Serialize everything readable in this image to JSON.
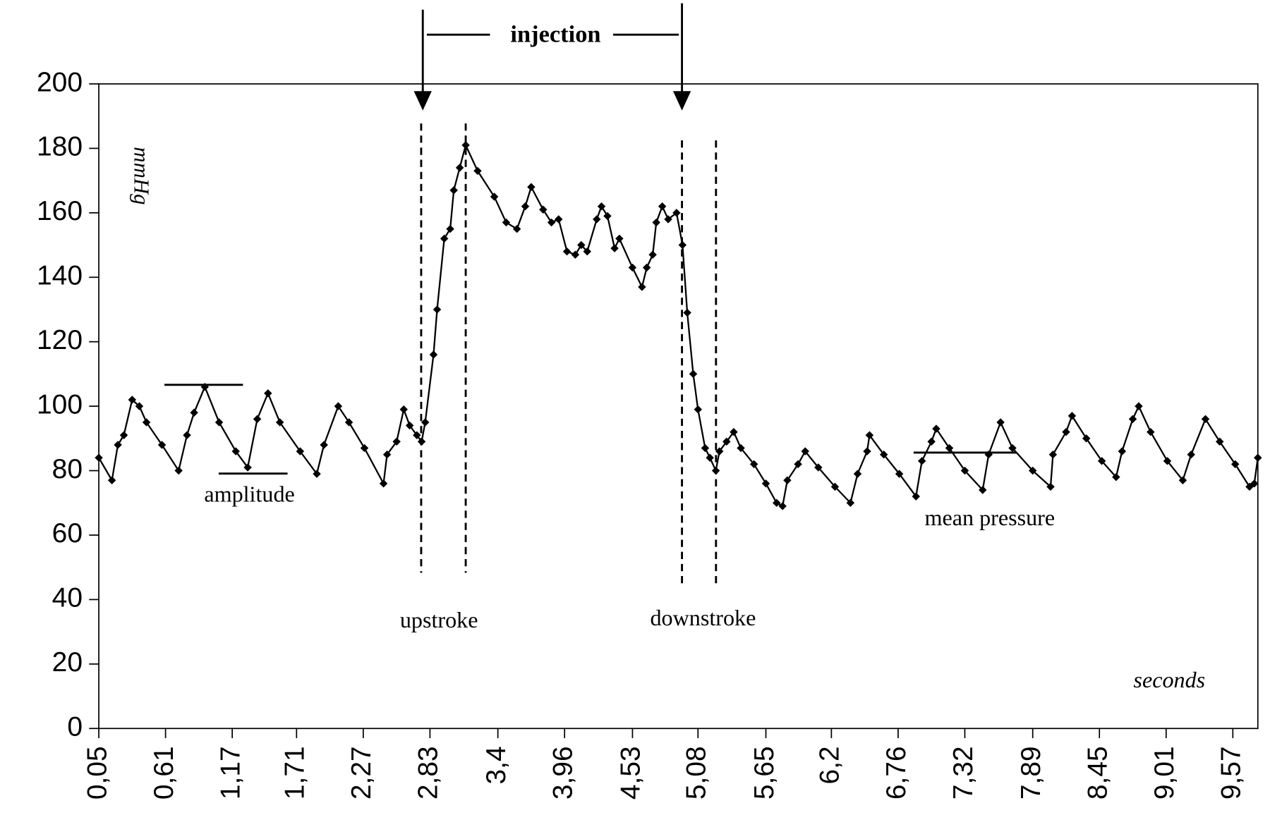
{
  "chart_data": {
    "type": "line",
    "x_label": "seconds",
    "y_label": "mmHg",
    "annotations": [
      "injection",
      "upstroke",
      "downstroke",
      "amplitude",
      "mean pressure"
    ],
    "color": "#000000",
    "x": [
      0.05,
      0.16,
      0.21,
      0.26,
      0.33,
      0.39,
      0.45,
      0.58,
      0.72,
      0.79,
      0.85,
      0.94,
      1.06,
      1.2,
      1.3,
      1.38,
      1.47,
      1.57,
      1.74,
      1.88,
      1.94,
      2.06,
      2.15,
      2.28,
      2.44,
      2.47,
      2.55,
      2.61,
      2.66,
      2.72,
      2.76,
      2.79,
      2.86,
      2.89,
      2.95,
      3.0,
      3.03,
      3.08,
      3.13,
      3.23,
      3.37,
      3.47,
      3.56,
      3.63,
      3.68,
      3.78,
      3.85,
      3.91,
      3.98,
      4.05,
      4.1,
      4.15,
      4.23,
      4.27,
      4.32,
      4.38,
      4.42,
      4.53,
      4.61,
      4.65,
      4.7,
      4.73,
      4.78,
      4.83,
      4.9,
      4.95,
      4.99,
      5.04,
      5.08,
      5.14,
      5.18,
      5.23,
      5.26,
      5.32,
      5.38,
      5.44,
      5.55,
      5.65,
      5.74,
      5.79,
      5.83,
      5.92,
      5.98,
      6.09,
      6.23,
      6.36,
      6.42,
      6.5,
      6.52,
      6.64,
      6.77,
      6.91,
      6.96,
      7.04,
      7.08,
      7.19,
      7.32,
      7.47,
      7.52,
      7.62,
      7.72,
      7.89,
      8.04,
      8.06,
      8.17,
      8.22,
      8.34,
      8.47,
      8.59,
      8.64,
      8.73,
      8.78,
      8.88,
      9.02,
      9.15,
      9.22,
      9.34,
      9.46,
      9.59,
      9.71,
      9.75,
      9.78
    ],
    "values": [
      84,
      77,
      88,
      91,
      102,
      100,
      95,
      88,
      80,
      91,
      98,
      106,
      95,
      86,
      81,
      96,
      104,
      95,
      86,
      79,
      88,
      100,
      95,
      87,
      76,
      85,
      89,
      99,
      94,
      91,
      89,
      95,
      116,
      130,
      152,
      155,
      167,
      174,
      181,
      173,
      165,
      157,
      155,
      162,
      168,
      161,
      157,
      158,
      148,
      147,
      150,
      148,
      158,
      162,
      159,
      149,
      152,
      143,
      137,
      143,
      147,
      157,
      162,
      158,
      160,
      150,
      129,
      110,
      99,
      87,
      84,
      80,
      86,
      89,
      92,
      87,
      82,
      76,
      70,
      69,
      77,
      82,
      86,
      81,
      75,
      70,
      79,
      86,
      91,
      85,
      79,
      72,
      83,
      89,
      93,
      87,
      80,
      74,
      85,
      95,
      87,
      80,
      75,
      85,
      92,
      97,
      90,
      83,
      78,
      86,
      96,
      100,
      92,
      83,
      77,
      85,
      96,
      89,
      82,
      75,
      76,
      84
    ],
    "xlim": [
      0.05,
      9.78
    ],
    "xticks": [
      {
        "value": 0.05,
        "label": "0,05"
      },
      {
        "value": 0.61,
        "label": "0,61"
      },
      {
        "value": 1.17,
        "label": "1,17"
      },
      {
        "value": 1.71,
        "label": "1,71"
      },
      {
        "value": 2.27,
        "label": "2,27"
      },
      {
        "value": 2.83,
        "label": "2,83"
      },
      {
        "value": 3.4,
        "label": "3,4"
      },
      {
        "value": 3.96,
        "label": "3,96"
      },
      {
        "value": 4.53,
        "label": "4,53"
      },
      {
        "value": 5.08,
        "label": "5,08"
      },
      {
        "value": 5.65,
        "label": "5,65"
      },
      {
        "value": 6.2,
        "label": "6,2"
      },
      {
        "value": 6.76,
        "label": "6,76"
      },
      {
        "value": 7.32,
        "label": "7,32"
      },
      {
        "value": 7.89,
        "label": "7,89"
      },
      {
        "value": 8.45,
        "label": "8,45"
      },
      {
        "value": 9.01,
        "label": "9,01"
      },
      {
        "value": 9.57,
        "label": "9,57"
      }
    ],
    "ylim": [
      0,
      200
    ],
    "yticks": [
      0,
      20,
      40,
      60,
      80,
      100,
      120,
      140,
      160,
      180,
      200
    ]
  }
}
